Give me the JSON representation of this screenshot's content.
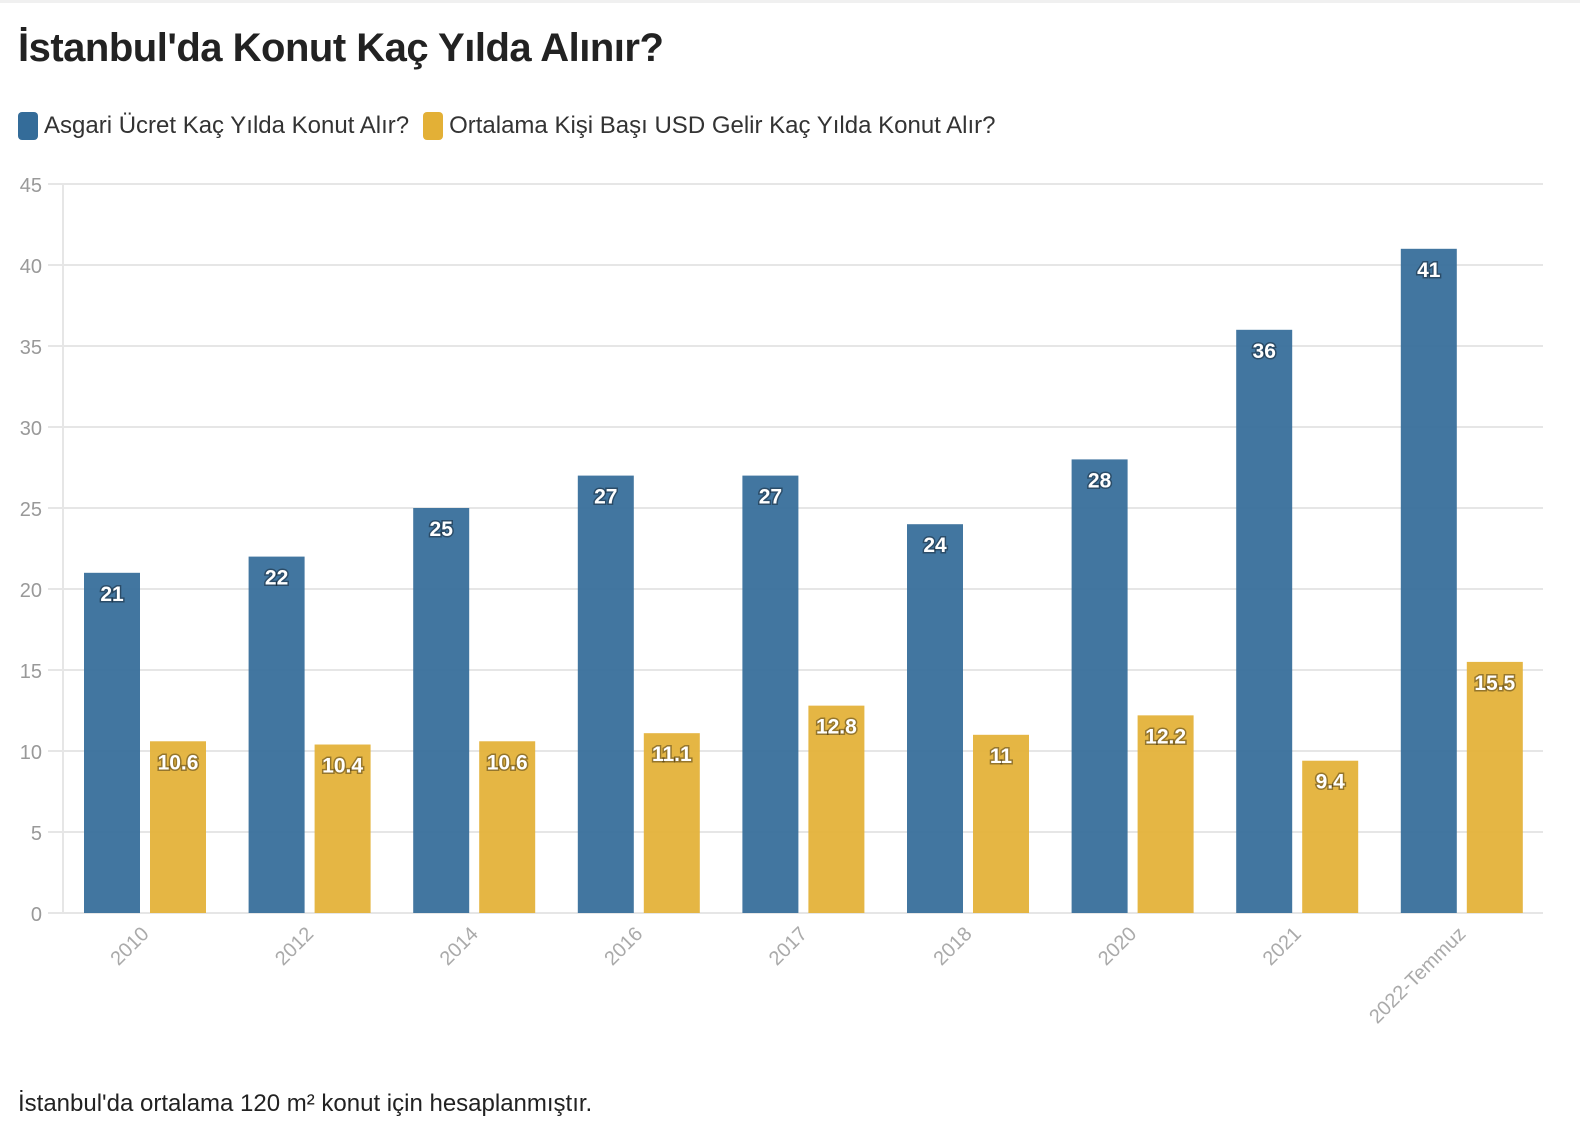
{
  "title": "İstanbul'da Konut Kaç Yılda Alınır?",
  "footnote": "İstanbul'da ortalama 120 m² konut için hesaplanmıştır.",
  "colors": {
    "series1": "#346c99",
    "series2": "#e3b036",
    "grid": "#e6e6e6",
    "tick": "#999999"
  },
  "chart_data": {
    "type": "bar",
    "title": "İstanbul'da Konut Kaç Yılda Alınır?",
    "xlabel": "",
    "ylabel": "",
    "ylim": [
      0,
      45
    ],
    "yticks": [
      0,
      5,
      10,
      15,
      20,
      25,
      30,
      35,
      40,
      45
    ],
    "categories": [
      "2010",
      "2012",
      "2014",
      "2016",
      "2017",
      "2018",
      "2020",
      "2021",
      "2022-Temmuz"
    ],
    "series": [
      {
        "name": "Asgari Ücret Kaç Yılda Konut Alır?",
        "values": [
          21,
          22,
          25,
          27,
          27,
          24,
          28,
          36,
          41
        ],
        "labels": [
          "21",
          "22",
          "25",
          "27",
          "27",
          "24",
          "28",
          "36",
          "41"
        ]
      },
      {
        "name": "Ortalama Kişi Başı USD Gelir Kaç Yılda Konut Alır?",
        "values": [
          10.6,
          10.4,
          10.6,
          11.1,
          12.8,
          11,
          12.2,
          9.4,
          15.5
        ],
        "labels": [
          "10.6",
          "10.4",
          "10.6",
          "11.1",
          "12.8",
          "11",
          "12.2",
          "9.4",
          "15.5"
        ]
      }
    ]
  }
}
